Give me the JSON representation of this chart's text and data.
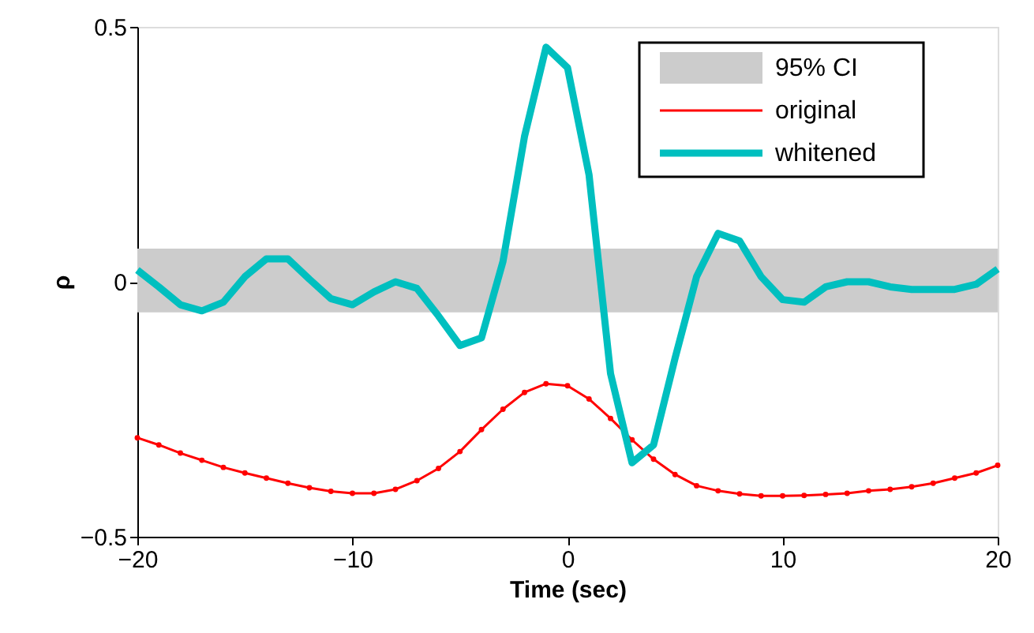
{
  "chart_data": {
    "type": "line",
    "xlabel": "Time (sec)",
    "ylabel": "ρ",
    "x": [
      -20,
      -19,
      -18,
      -17,
      -16,
      -15,
      -14,
      -13,
      -12,
      -11,
      -10,
      -9,
      -8,
      -7,
      -6,
      -5,
      -4,
      -3,
      -2,
      -1,
      0,
      1,
      2,
      3,
      4,
      5,
      6,
      7,
      8,
      9,
      10,
      11,
      12,
      13,
      14,
      15,
      16,
      17,
      18,
      19,
      20
    ],
    "series": [
      {
        "name": "original",
        "color": "#ff0000",
        "marker": "circle",
        "values": [
          -0.306,
          -0.32,
          -0.336,
          -0.35,
          -0.364,
          -0.375,
          -0.385,
          -0.395,
          -0.404,
          -0.411,
          -0.415,
          -0.415,
          -0.407,
          -0.39,
          -0.366,
          -0.333,
          -0.29,
          -0.25,
          -0.217,
          -0.2,
          -0.204,
          -0.23,
          -0.268,
          -0.31,
          -0.348,
          -0.378,
          -0.4,
          -0.41,
          -0.416,
          -0.42,
          -0.42,
          -0.419,
          -0.417,
          -0.415,
          -0.41,
          -0.407,
          -0.402,
          -0.395,
          -0.385,
          -0.375,
          -0.36
        ]
      },
      {
        "name": "whitened",
        "color": "#00bfbf",
        "marker": "none",
        "values": [
          0.023,
          -0.01,
          -0.045,
          -0.057,
          -0.04,
          0.01,
          0.045,
          0.045,
          0.005,
          -0.033,
          -0.045,
          -0.02,
          0.0,
          -0.013,
          -0.067,
          -0.125,
          -0.11,
          0.04,
          0.285,
          0.46,
          0.42,
          0.21,
          -0.18,
          -0.355,
          -0.32,
          -0.15,
          0.01,
          0.095,
          0.08,
          0.01,
          -0.035,
          -0.04,
          -0.01,
          0.0,
          0.0,
          -0.01,
          -0.015,
          -0.015,
          -0.015,
          -0.005,
          0.025
        ]
      }
    ],
    "bands": [
      {
        "axis": "y",
        "from": -0.06,
        "to": 0.065,
        "label": "95% CI",
        "color": "#cccccc"
      }
    ],
    "xlim": [
      -20,
      20
    ],
    "xticks": [
      {
        "value": -20,
        "label": "−20"
      },
      {
        "value": -10,
        "label": "−10"
      },
      0,
      10,
      20
    ],
    "ylim": [
      -0.5,
      0.5
    ],
    "yticks": [
      {
        "value": -0.5,
        "label": "−0.5"
      },
      0,
      0.5
    ],
    "grid": false,
    "legend": "top right"
  }
}
